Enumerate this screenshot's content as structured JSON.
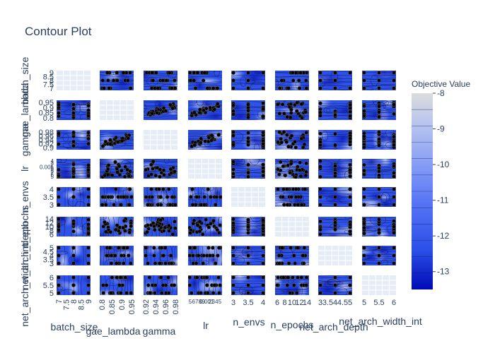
{
  "chart_data": {
    "type": "contour",
    "title": "Contour Plot",
    "params": [
      "batch_size",
      "gae_lambda",
      "gamma",
      "lr",
      "n_envs",
      "n_epochs",
      "net_arch_depth",
      "net_arch_width_int"
    ],
    "x_ticks": [
      [
        "7",
        "7.5",
        "8",
        "8.5",
        "9"
      ],
      [
        "0.8",
        "0.85",
        "0.9",
        "0.95"
      ],
      [
        "0.92",
        "0.94",
        "0.96",
        "0.98"
      ],
      [
        "5",
        "6",
        "7",
        "8",
        "9",
        "0.001",
        "2",
        "3",
        "4",
        "5"
      ],
      [
        "3",
        "3.5",
        "4"
      ],
      [
        "6",
        "8",
        "10",
        "12",
        "14"
      ],
      [
        "3",
        "3.5",
        "4",
        "4.5",
        "5"
      ],
      [
        "5",
        "5.5",
        "6"
      ]
    ],
    "y_ticks": [
      [
        "9",
        "8.5",
        "8",
        "7.5",
        "7"
      ],
      [
        "0.95",
        "0.9",
        "0.85",
        "0.8"
      ],
      [
        "0.98",
        "0.96",
        "0.94",
        "0.92",
        "0.9"
      ],
      [
        "4",
        "3",
        "2",
        "0.001",
        "9",
        "8",
        "7",
        "6",
        "5"
      ],
      [
        "4",
        "3.5",
        "3"
      ],
      [
        "14",
        "12",
        "10",
        "8",
        "6"
      ],
      [
        "5",
        "4.5",
        "4",
        "3.5",
        "3"
      ],
      [
        "6",
        "5.5",
        "5"
      ]
    ],
    "colorbar": {
      "title": "Objective Value",
      "ticks": [
        "-8",
        "-9",
        "-10",
        "-11",
        "-12",
        "-13"
      ],
      "range": [
        -13.5,
        -8
      ],
      "colorscale": [
        "#000ab5",
        "#2b4fe8",
        "#5876f5",
        "#8aa0f5",
        "#b9c6ee",
        "#dcdcdc"
      ]
    },
    "grid": true,
    "legend": "none"
  }
}
